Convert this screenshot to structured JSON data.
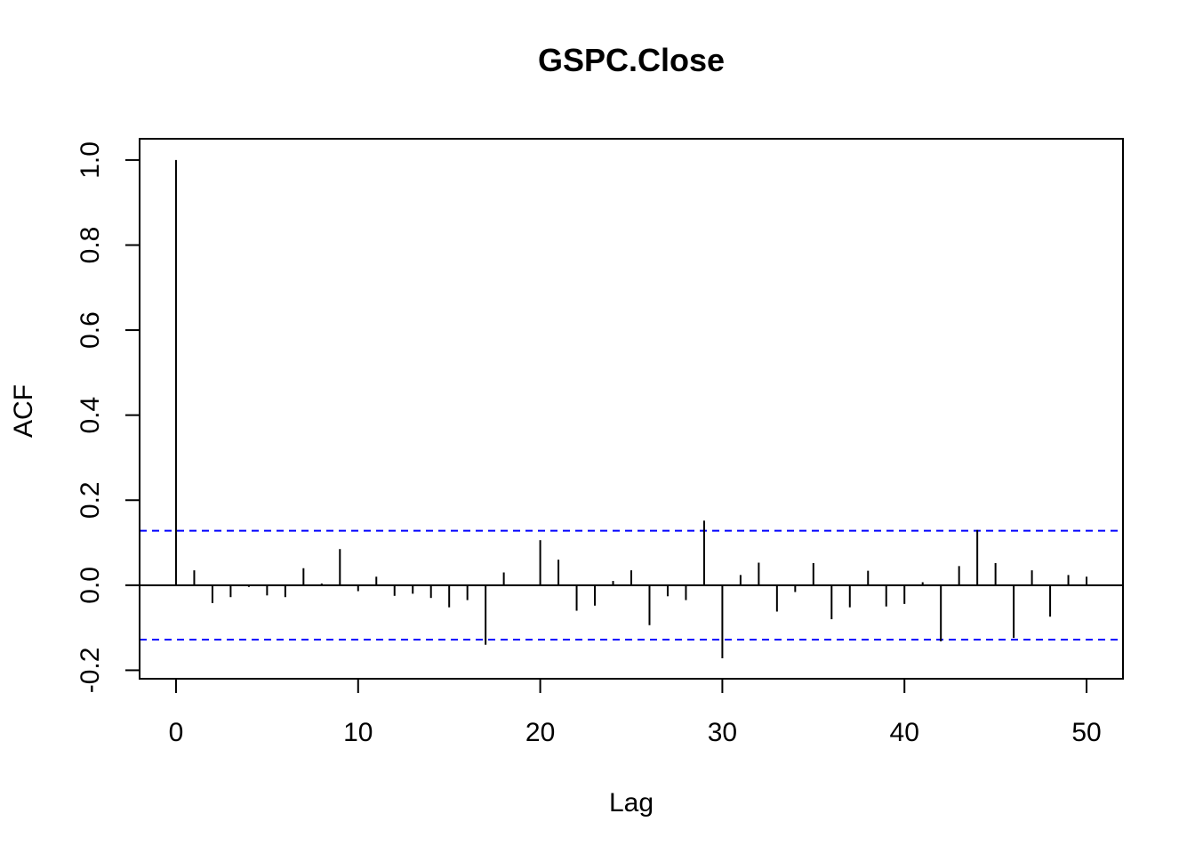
{
  "chart_data": {
    "type": "bar",
    "title": "GSPC.Close",
    "xlabel": "Lag",
    "ylabel": "ACF",
    "xlim": [
      -2,
      52
    ],
    "ylim": [
      -0.22,
      1.05
    ],
    "x_ticks": [
      0,
      10,
      20,
      30,
      40,
      50
    ],
    "y_ticks": [
      -0.2,
      0.0,
      0.2,
      0.4,
      0.6,
      0.8,
      1.0
    ],
    "x_tick_labels": [
      "0",
      "10",
      "20",
      "30",
      "40",
      "50"
    ],
    "y_tick_labels": [
      "-0.2",
      "0.0",
      "0.2",
      "0.4",
      "0.6",
      "0.8",
      "1.0"
    ],
    "confidence_bound": 0.128,
    "confidence_line_color": "#0000ff",
    "bar_color": "#000000",
    "lags": [
      0,
      1,
      2,
      3,
      4,
      5,
      6,
      7,
      8,
      9,
      10,
      11,
      12,
      13,
      14,
      15,
      16,
      17,
      18,
      19,
      20,
      21,
      22,
      23,
      24,
      25,
      26,
      27,
      28,
      29,
      30,
      31,
      32,
      33,
      34,
      35,
      36,
      37,
      38,
      39,
      40,
      41,
      42,
      43,
      44,
      45,
      46,
      47,
      48,
      49,
      50
    ],
    "values": [
      1.0,
      0.035,
      -0.042,
      -0.028,
      -0.004,
      -0.024,
      -0.028,
      0.04,
      0.004,
      0.085,
      -0.014,
      0.02,
      -0.025,
      -0.02,
      -0.03,
      -0.052,
      -0.035,
      -0.14,
      0.03,
      0.0,
      0.106,
      0.06,
      -0.06,
      -0.048,
      0.01,
      0.035,
      -0.094,
      -0.026,
      -0.035,
      0.152,
      -0.172,
      0.024,
      0.053,
      -0.062,
      -0.016,
      0.052,
      -0.08,
      -0.052,
      0.034,
      -0.05,
      -0.044,
      0.007,
      -0.132,
      0.045,
      0.13,
      0.052,
      -0.124,
      0.035,
      -0.074,
      0.024,
      0.02
    ]
  }
}
